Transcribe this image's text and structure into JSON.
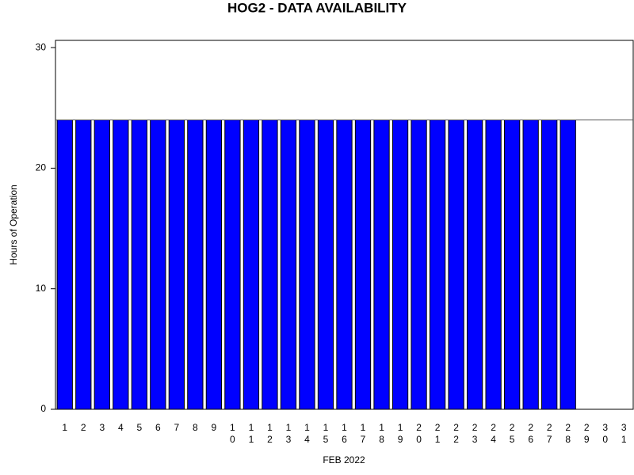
{
  "chart_data": {
    "type": "bar",
    "title": "HOG2 - DATA AVAILABILITY",
    "x_label": "FEB 2022",
    "y_label": "Hours of Operation",
    "categories": [
      "1",
      "2",
      "3",
      "4",
      "5",
      "6",
      "7",
      "8",
      "9",
      "10",
      "11",
      "12",
      "13",
      "14",
      "15",
      "16",
      "17",
      "18",
      "19",
      "20",
      "21",
      "22",
      "23",
      "24",
      "25",
      "26",
      "27",
      "28",
      "29",
      "30",
      "31"
    ],
    "values": [
      24,
      24,
      24,
      24,
      24,
      24,
      24,
      24,
      24,
      24,
      24,
      24,
      24,
      24,
      24,
      24,
      24,
      24,
      24,
      24,
      24,
      24,
      24,
      24,
      24,
      24,
      24,
      24,
      null,
      null,
      null
    ],
    "color": "#0000ff",
    "ylim": [
      0,
      30.6
    ],
    "yticks": [
      0,
      10,
      20,
      30
    ],
    "reference_line": 24
  }
}
